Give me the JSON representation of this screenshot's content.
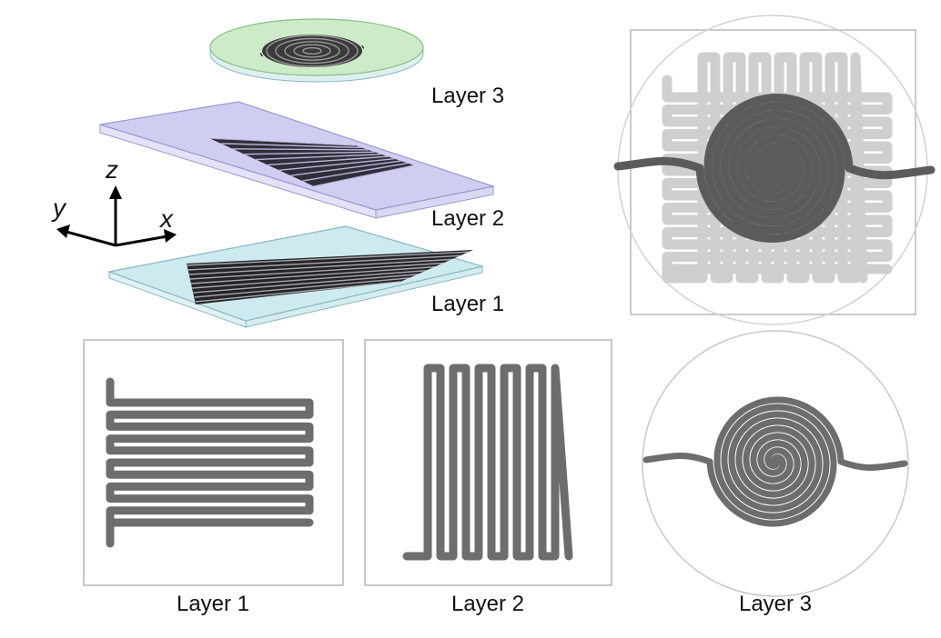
{
  "exploded_view": {
    "layers": [
      {
        "label": "Layer 3",
        "color": "#cdebc8"
      },
      {
        "label": "Layer 2",
        "color": "#cfcdf0"
      },
      {
        "label": "Layer 1",
        "color": "#cdeaf0"
      }
    ],
    "axes": {
      "x": "x",
      "y": "y",
      "z": "z"
    }
  },
  "panels": {
    "layer1": {
      "caption": "Layer 1"
    },
    "layer2": {
      "caption": "Layer 2"
    },
    "layer3": {
      "caption": "Layer 3"
    }
  },
  "colors": {
    "channel": "#6d6d6d",
    "channel_dark": "#2d2d2d",
    "channel_light": "#cfcfcf",
    "frame": "#b5b5b5"
  }
}
